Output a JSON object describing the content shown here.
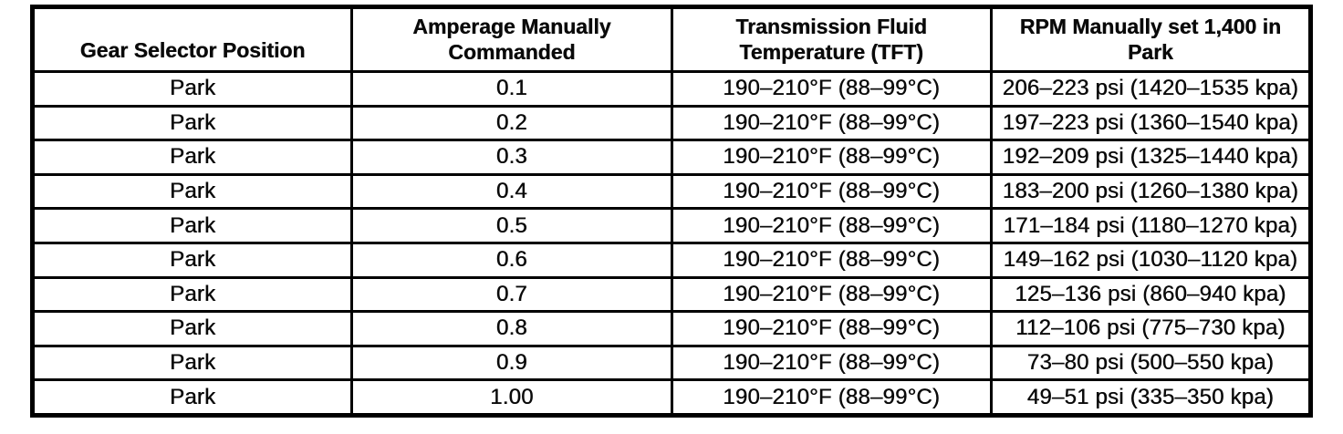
{
  "table": {
    "headers": [
      "Gear Selector Position",
      "Amperage Manually\nCommanded",
      "Transmission Fluid\nTemperature (TFT)",
      "RPM Manually set 1,400 in\nPark"
    ],
    "rows": [
      [
        "Park",
        "0.1",
        "190–210°F (88–99°C)",
        "206–223 psi (1420–1535 kpa)"
      ],
      [
        "Park",
        "0.2",
        "190–210°F (88–99°C)",
        "197–223 psi (1360–1540 kpa)"
      ],
      [
        "Park",
        "0.3",
        "190–210°F (88–99°C)",
        "192–209 psi (1325–1440 kpa)"
      ],
      [
        "Park",
        "0.4",
        "190–210°F (88–99°C)",
        "183–200 psi (1260–1380 kpa)"
      ],
      [
        "Park",
        "0.5",
        "190–210°F (88–99°C)",
        "171–184 psi (1180–1270 kpa)"
      ],
      [
        "Park",
        "0.6",
        "190–210°F (88–99°C)",
        "149–162 psi (1030–1120 kpa)"
      ],
      [
        "Park",
        "0.7",
        "190–210°F (88–99°C)",
        "125–136 psi (860–940 kpa)"
      ],
      [
        "Park",
        "0.8",
        "190–210°F (88–99°C)",
        "112–106 psi (775–730 kpa)"
      ],
      [
        "Park",
        "0.9",
        "190–210°F (88–99°C)",
        "73–80 psi (500–550 kpa)"
      ],
      [
        "Park",
        "1.00",
        "190–210°F (88–99°C)",
        "49–51 psi (335–350 kpa)"
      ]
    ],
    "colors": {
      "border": "#000000",
      "text": "#0a0a0a",
      "background": "#ffffff"
    }
  }
}
